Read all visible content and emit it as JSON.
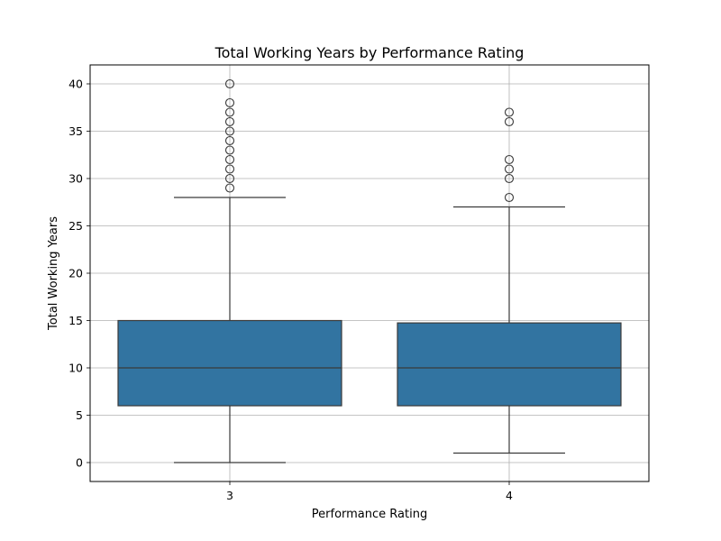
{
  "chart_data": {
    "type": "box",
    "title": "Total Working Years by Performance Rating",
    "xlabel": "Performance Rating",
    "ylabel": "Total Working Years",
    "ylim": [
      -2,
      42
    ],
    "yticks": [
      0,
      5,
      10,
      15,
      20,
      25,
      30,
      35,
      40
    ],
    "grid": true,
    "box_color": "#3274a1",
    "line_color": "#3a3a3a",
    "grid_color": "#b0b0b0",
    "categories": [
      "3",
      "4"
    ],
    "boxes": [
      {
        "category": "3",
        "whisker_low": 0,
        "q1": 6,
        "median": 10,
        "q3": 15,
        "whisker_high": 28,
        "outliers": [
          29,
          30,
          31,
          32,
          33,
          34,
          35,
          36,
          37,
          38,
          40
        ]
      },
      {
        "category": "4",
        "whisker_low": 1,
        "q1": 6,
        "median": 10,
        "q3": 14.75,
        "whisker_high": 27,
        "outliers": [
          28,
          30,
          31,
          32,
          36,
          37
        ]
      }
    ]
  }
}
